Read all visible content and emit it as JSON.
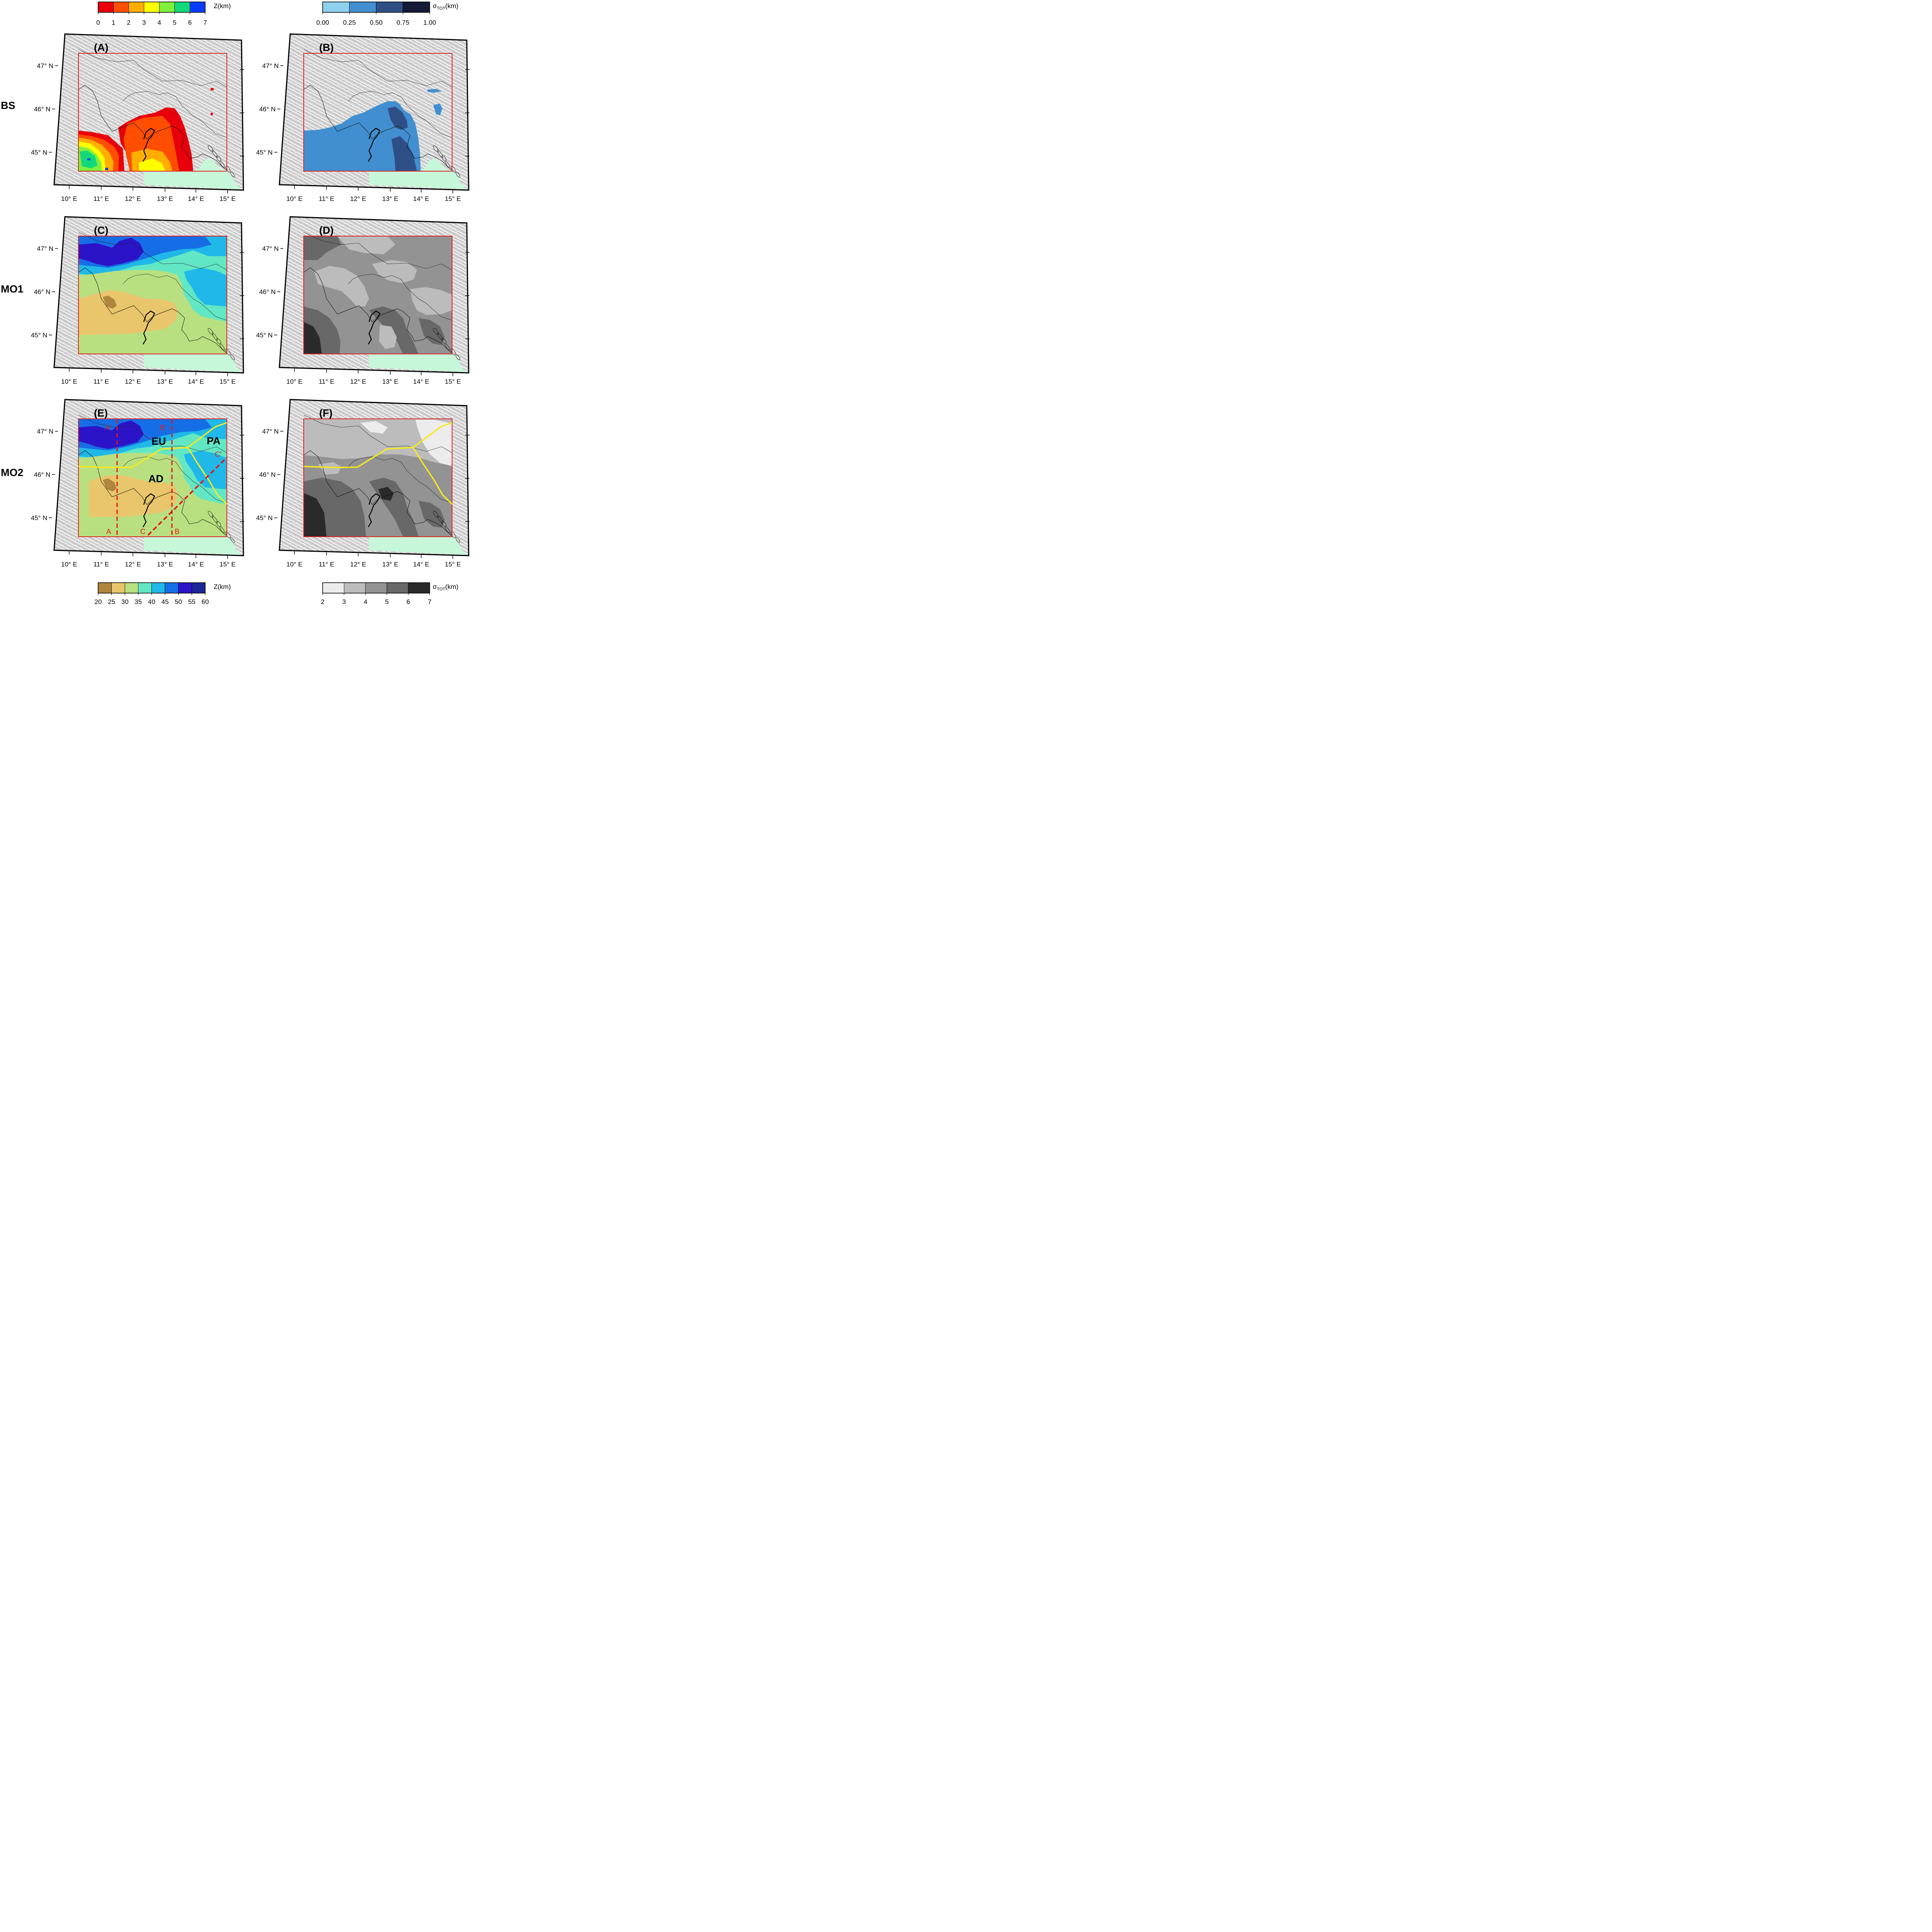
{
  "row_labels": [
    "BS",
    "MO1",
    "MO2"
  ],
  "panel_labels": [
    "(A)",
    "(B)",
    "(C)",
    "(D)",
    "(E)",
    "(F)"
  ],
  "lat_ticks": [
    "47° N",
    "46° N",
    "45° N"
  ],
  "lon_ticks": [
    "10° E",
    "11° E",
    "12° E",
    "13° E",
    "14° E",
    "15° E"
  ],
  "colorbars": {
    "depth_bs": {
      "title": "Z(km)",
      "ticks": [
        "0",
        "1",
        "2",
        "3",
        "4",
        "5",
        "6",
        "7"
      ],
      "colors": [
        "#e8000b",
        "#ff4e00",
        "#ffae00",
        "#ffff00",
        "#7ff03c",
        "#13d87a",
        "#0a3cff"
      ]
    },
    "sigma_bs": {
      "title_main": "σ",
      "title_sub": "TOT",
      "title_unit": "(km)",
      "ticks": [
        "0.00",
        "0.25",
        "0.50",
        "0.75",
        "1.00"
      ],
      "colors": [
        "#8fd0ef",
        "#418fd0",
        "#2e4f86",
        "#151a36"
      ]
    },
    "depth_mo": {
      "title": "Z(km)",
      "ticks": [
        "20",
        "25",
        "30",
        "35",
        "40",
        "45",
        "50",
        "55",
        "60"
      ],
      "colors": [
        "#b0853e",
        "#e9c66c",
        "#b8e080",
        "#62e7c4",
        "#1fb8e8",
        "#166ee6",
        "#2b14c8",
        "#1b2796"
      ]
    },
    "sigma_mo": {
      "title_main": "σ",
      "title_sub": "TOT",
      "title_unit": "(km)",
      "ticks": [
        "2",
        "3",
        "4",
        "5",
        "6",
        "7"
      ],
      "colors": [
        "#ececec",
        "#bcbcbc",
        "#939393",
        "#686868",
        "#2a2a2a"
      ]
    }
  },
  "plate_labels": [
    "EU",
    "PA",
    "AD"
  ],
  "profile_labels": [
    "A'",
    "B'",
    "C'",
    "A",
    "B",
    "C"
  ],
  "colors": {
    "land": "#d4d4d4",
    "sea": "#c6f7d8",
    "frame": "#e02020",
    "boundary": "#f6ea1a",
    "profile": "#e01818"
  }
}
